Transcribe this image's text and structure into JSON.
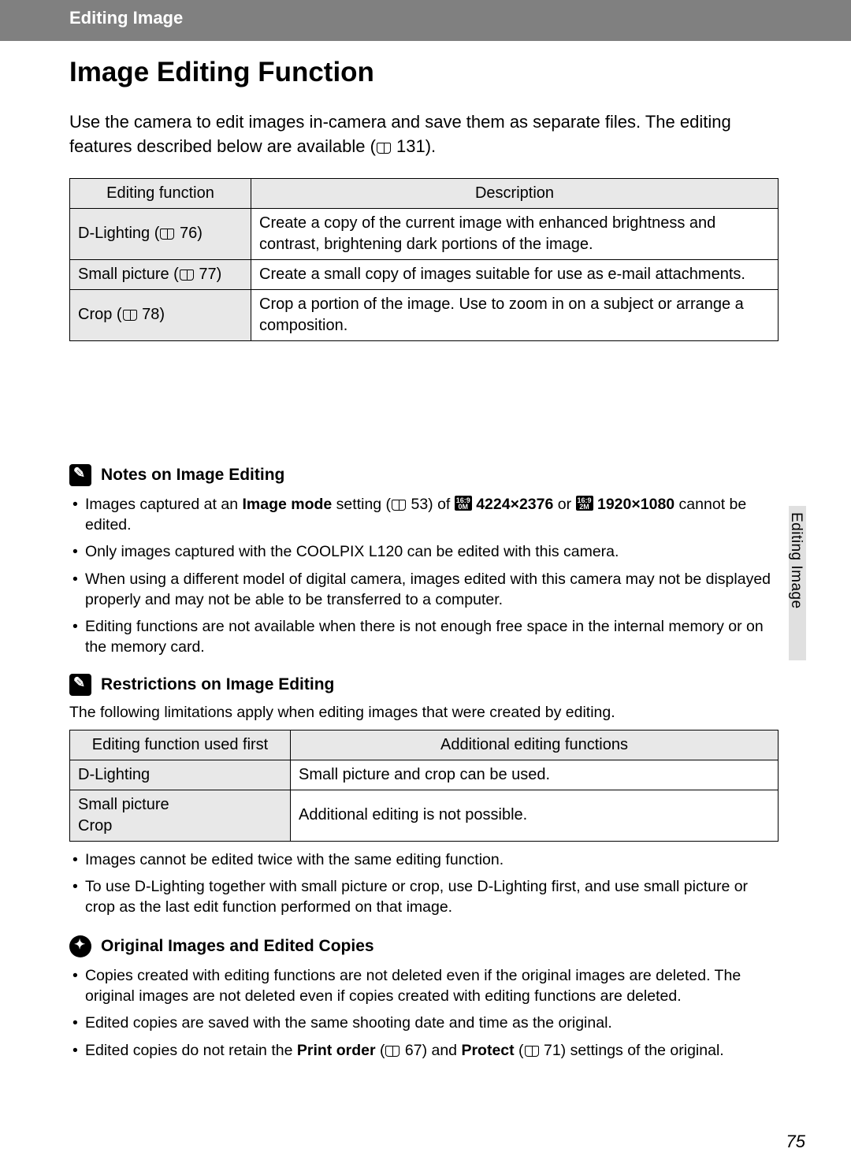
{
  "header": {
    "breadcrumb": "Editing Image"
  },
  "title": "Image Editing Function",
  "intro": {
    "text_a": "Use the camera to edit images in-camera and save them as separate files. The editing features described below are available (",
    "ref": " 131).",
    "full": ""
  },
  "table1": {
    "head": {
      "c1": "Editing function",
      "c2": "Description"
    },
    "rows": [
      {
        "name": "D-Lighting (",
        "ref": " 76)",
        "desc": "Create a copy of the current image with enhanced brightness and contrast, brightening dark portions of the image."
      },
      {
        "name": "Small picture (",
        "ref": " 77)",
        "desc": "Create a small copy of images suitable for use as e-mail attachments."
      },
      {
        "name": "Crop (",
        "ref": " 78)",
        "desc": "Crop a portion of the image. Use to zoom in on a subject or arrange a composition."
      }
    ]
  },
  "section_notes": {
    "title": "Notes on Image Editing",
    "n1_a": "Images captured at an ",
    "n1_b": "Image mode",
    "n1_c": " setting (",
    "n1_d": " 53) of ",
    "n1_mode1_icon": "16:9 0M",
    "n1_mode1": " 4224×2376",
    "n1_e": " or ",
    "n1_mode2_icon": "16:9 2M",
    "n1_mode2": " 1920×1080",
    "n1_f": " cannot be edited.",
    "n2": "Only images captured with the COOLPIX L120 can be edited with this camera.",
    "n3": "When using a different model of digital camera, images edited with this camera may not be displayed properly and may not be able to be transferred to a computer.",
    "n4": "Editing functions are not available when there is not enough free space in the internal memory or on the memory card."
  },
  "section_restrict": {
    "title": "Restrictions on Image Editing",
    "lead": "The following limitations apply when editing images that were created by editing.",
    "head": {
      "c1": "Editing function used first",
      "c2": "Additional editing functions"
    },
    "rows": [
      {
        "c1": "D-Lighting",
        "c2": "Small picture and crop can be used."
      },
      {
        "c1": "Small picture\nCrop",
        "c2": "Additional editing is not possible."
      }
    ],
    "n1": "Images cannot be edited twice with the same editing function.",
    "n2": "To use D-Lighting together with small picture or crop, use D-Lighting first, and use small picture or crop as the last edit function performed on that image."
  },
  "section_orig": {
    "title": "Original Images and Edited Copies",
    "n1": "Copies created with editing functions are not deleted even if the original images are deleted. The original images are not deleted even if copies created with editing functions are deleted.",
    "n2": "Edited copies are saved with the same shooting date and time as the original.",
    "n3_a": "Edited copies do not retain the ",
    "n3_b": "Print order",
    "n3_c": " (",
    "n3_d": " 67) and ",
    "n3_e": "Protect",
    "n3_f": " (",
    "n3_g": " 71) settings of the original."
  },
  "side_label": "Editing Image",
  "page_number": "75"
}
